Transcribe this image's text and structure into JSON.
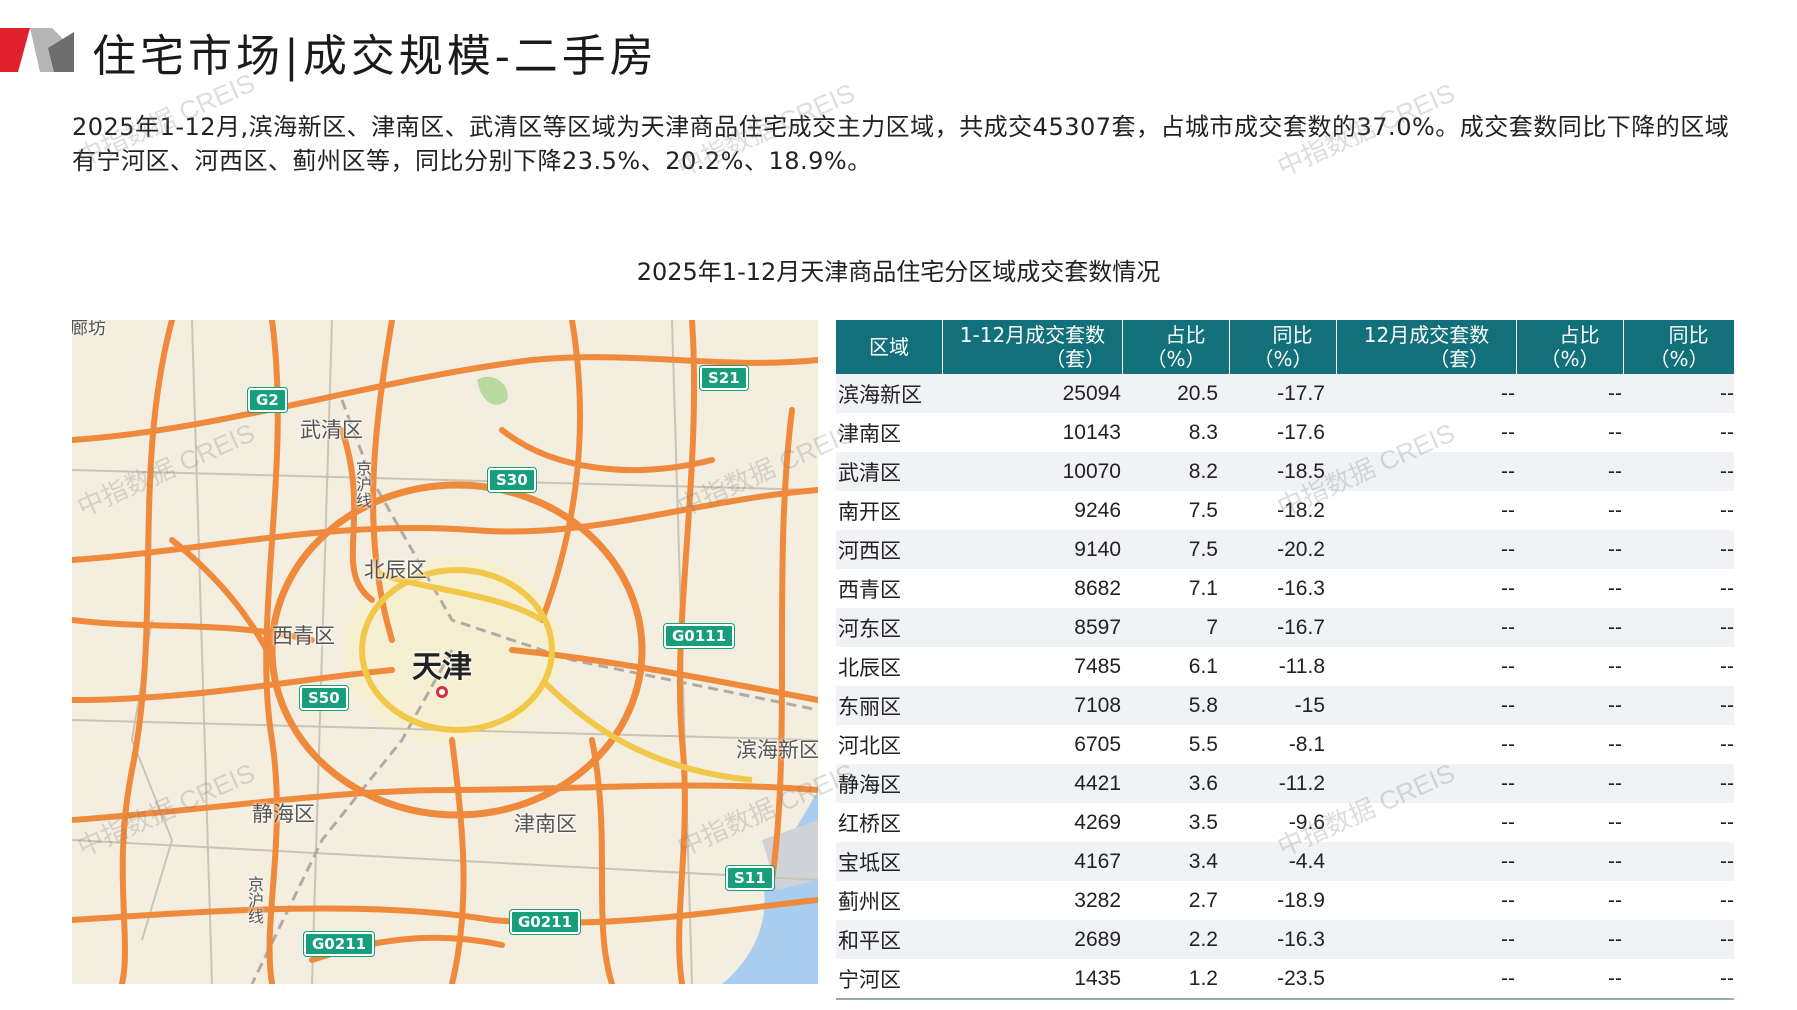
{
  "header": {
    "title": "住宅市场|成交规模-二手房"
  },
  "intro": {
    "text": "2025年1-12月,滨海新区、津南区、武清区等区域为天津商品住宅成交主力区域，共成交45307套，占城市成交套数的37.0%。成交套数同比下降的区域有宁河区、河西区、蓟州区等，同比分别下降23.5%、20.2%、18.9%。"
  },
  "chart_title": "2025年1-12月天津商品住宅分区域成交套数情况",
  "map": {
    "city_label": "天津",
    "district_labels": {
      "wuqing": "武清区",
      "beichen": "北辰区",
      "xiqing": "西青区",
      "jinghai": "静海区",
      "jinnan": "津南区",
      "binhai": "滨海新区"
    },
    "rail_labels": {
      "jinghu_top": "京沪线",
      "jinghu_bottom": "京沪线"
    },
    "corner_label": "廊坊",
    "shields": {
      "g2": "G2",
      "s21": "S21",
      "s30": "S30",
      "g0111": "G0111",
      "s50": "S50",
      "s11": "S11",
      "g0211_a": "G0211",
      "g0211_b": "G0211"
    }
  },
  "watermark": "中指数据 CREIS",
  "table": {
    "headers": [
      [
        "区域",
        ""
      ],
      [
        "1-12月成交套数",
        "（套）"
      ],
      [
        "占比",
        "（%）"
      ],
      [
        "同比",
        "（%）"
      ],
      [
        "12月成交套数",
        "（套）"
      ],
      [
        "占比",
        "（%）"
      ],
      [
        "同比",
        "（%）"
      ]
    ],
    "rows": [
      [
        "滨海新区",
        "25094",
        "20.5",
        "-17.7",
        "--",
        "--",
        "--"
      ],
      [
        "津南区",
        "10143",
        "8.3",
        "-17.6",
        "--",
        "--",
        "--"
      ],
      [
        "武清区",
        "10070",
        "8.2",
        "-18.5",
        "--",
        "--",
        "--"
      ],
      [
        "南开区",
        "9246",
        "7.5",
        "-18.2",
        "--",
        "--",
        "--"
      ],
      [
        "河西区",
        "9140",
        "7.5",
        "-20.2",
        "--",
        "--",
        "--"
      ],
      [
        "西青区",
        "8682",
        "7.1",
        "-16.3",
        "--",
        "--",
        "--"
      ],
      [
        "河东区",
        "8597",
        "7",
        "-16.7",
        "--",
        "--",
        "--"
      ],
      [
        "北辰区",
        "7485",
        "6.1",
        "-11.8",
        "--",
        "--",
        "--"
      ],
      [
        "东丽区",
        "7108",
        "5.8",
        "-15",
        "--",
        "--",
        "--"
      ],
      [
        "河北区",
        "6705",
        "5.5",
        "-8.1",
        "--",
        "--",
        "--"
      ],
      [
        "静海区",
        "4421",
        "3.6",
        "-11.2",
        "--",
        "--",
        "--"
      ],
      [
        "红桥区",
        "4269",
        "3.5",
        "-9.6",
        "--",
        "--",
        "--"
      ],
      [
        "宝坻区",
        "4167",
        "3.4",
        "-4.4",
        "--",
        "--",
        "--"
      ],
      [
        "蓟州区",
        "3282",
        "2.7",
        "-18.9",
        "--",
        "--",
        "--"
      ],
      [
        "和平区",
        "2689",
        "2.2",
        "-16.3",
        "--",
        "--",
        "--"
      ],
      [
        "宁河区",
        "1435",
        "1.2",
        "-23.5",
        "--",
        "--",
        "--"
      ]
    ]
  },
  "colors": {
    "accent_red": "#e0202b",
    "header_teal": "#12707a",
    "shield_green": "#179e7a",
    "road_orange": "#ef8a3c",
    "ring_yellow": "#f2c84b",
    "sea_blue": "#a9cdef"
  }
}
